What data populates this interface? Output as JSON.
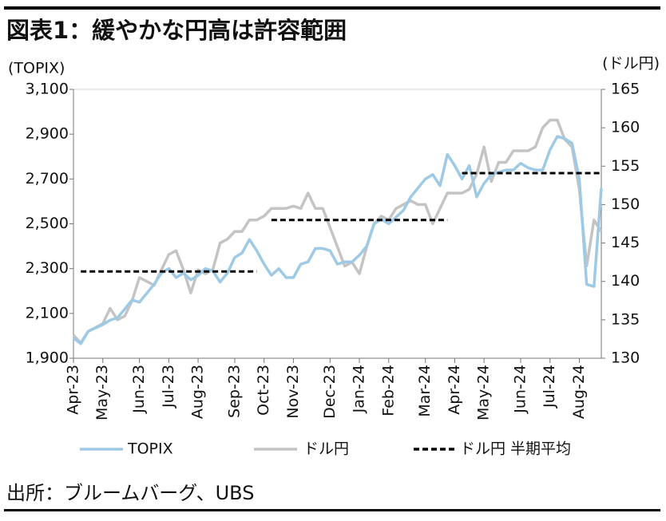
{
  "title": "図表1：緩やかな円高は許容範囲",
  "source": "出所：ブルームバーグ、UBS",
  "chart_data": {
    "type": "line",
    "y_label": "(TOPIX)",
    "y2_label": "(ドル円)",
    "categories": [
      "Apr-23",
      null,
      null,
      null,
      "May-23",
      null,
      null,
      null,
      null,
      "Jun-23",
      null,
      null,
      null,
      "Jul-23",
      null,
      null,
      null,
      "Aug-23",
      null,
      null,
      null,
      null,
      "Sep-23",
      null,
      null,
      null,
      "Oct-23",
      null,
      null,
      null,
      "Nov-23",
      null,
      null,
      null,
      null,
      "Dec-23",
      null,
      null,
      null,
      "Jan-24",
      null,
      null,
      null,
      "Feb-24",
      null,
      null,
      null,
      null,
      "Mar-24",
      null,
      null,
      null,
      "Apr-24",
      null,
      null,
      null,
      "May-24",
      null,
      null,
      null,
      null,
      "Jun-24",
      null,
      null,
      null,
      "Jul-24",
      null,
      null,
      null,
      "Aug-24",
      null,
      null,
      null
    ],
    "series": [
      {
        "name": "TOPIX",
        "color": "#9ecae6",
        "axis": "y",
        "dashed": false,
        "values": [
          1990,
          1965,
          2020,
          2035,
          2050,
          2070,
          2080,
          2120,
          2160,
          2150,
          2190,
          2230,
          2280,
          2300,
          2260,
          2280,
          2250,
          2270,
          2300,
          2290,
          2240,
          2280,
          2350,
          2370,
          2430,
          2380,
          2320,
          2270,
          2300,
          2260,
          2260,
          2320,
          2330,
          2390,
          2390,
          2380,
          2320,
          2330,
          2330,
          2360,
          2400,
          2500,
          2520,
          2500,
          2530,
          2560,
          2620,
          2660,
          2700,
          2720,
          2670,
          2810,
          2760,
          2700,
          2760,
          2620,
          2680,
          2720,
          2730,
          2740,
          2740,
          2770,
          2750,
          2740,
          2740,
          2830,
          2890,
          2880,
          2860,
          2700,
          2230,
          2220,
          2660
        ]
      },
      {
        "name": "ドル円",
        "color": "#c4c4c4",
        "axis": "y2",
        "dashed": false,
        "values": [
          133,
          132,
          133.5,
          134,
          134.5,
          136.5,
          135,
          135.5,
          137.5,
          140.5,
          140,
          139.5,
          141.5,
          143.5,
          144,
          141.5,
          138.5,
          141.5,
          141,
          141.5,
          145,
          145.5,
          146.5,
          146.5,
          148,
          148,
          148.5,
          149.5,
          149.5,
          149.5,
          149.8,
          149.5,
          151.5,
          149.5,
          149.5,
          147,
          144.5,
          142,
          142.5,
          141,
          144.5,
          147.5,
          148.5,
          148,
          149.5,
          150,
          150.5,
          150,
          150,
          147.5,
          149.5,
          151.5,
          151.5,
          151.5,
          152,
          154,
          157.5,
          153,
          155.5,
          155.5,
          157,
          157,
          157,
          157.5,
          160,
          161,
          161,
          158.5,
          157.5,
          152,
          142,
          148,
          146.5
        ]
      },
      {
        "name": "ドル円 半期平均",
        "color": "#000000",
        "axis": "y2",
        "dashed": true,
        "values": [
          null,
          141.3,
          141.3,
          141.3,
          141.3,
          141.3,
          141.3,
          141.3,
          141.3,
          141.3,
          141.3,
          141.3,
          141.3,
          141.3,
          141.3,
          141.3,
          141.3,
          141.3,
          141.3,
          141.3,
          141.3,
          141.3,
          141.3,
          141.3,
          141.3,
          141.3,
          null,
          148,
          148,
          148,
          148,
          148,
          148,
          148,
          148,
          148,
          148,
          148,
          148,
          148,
          148,
          148,
          148,
          148,
          148,
          148,
          148,
          148,
          148,
          148,
          148,
          148,
          null,
          154.1,
          154.1,
          154.1,
          154.1,
          154.1,
          154.1,
          154.1,
          154.1,
          154.1,
          154.1,
          154.1,
          154.1,
          154.1,
          154.1,
          154.1,
          154.1,
          154.1,
          154.1,
          154.1,
          154.1
        ]
      }
    ],
    "ylim": [
      1900,
      3100
    ],
    "yticks": [
      {
        "value": 1900,
        "label": "1,900"
      },
      {
        "value": 2100,
        "label": "2,100"
      },
      {
        "value": 2300,
        "label": "2,300"
      },
      {
        "value": 2500,
        "label": "2,500"
      },
      {
        "value": 2700,
        "label": "2,700"
      },
      {
        "value": 2900,
        "label": "2,900"
      },
      {
        "value": 3100,
        "label": "3,100"
      }
    ],
    "y2lim": [
      130,
      165
    ],
    "y2ticks": [
      130,
      135,
      140,
      145,
      150,
      155,
      160,
      165
    ]
  }
}
